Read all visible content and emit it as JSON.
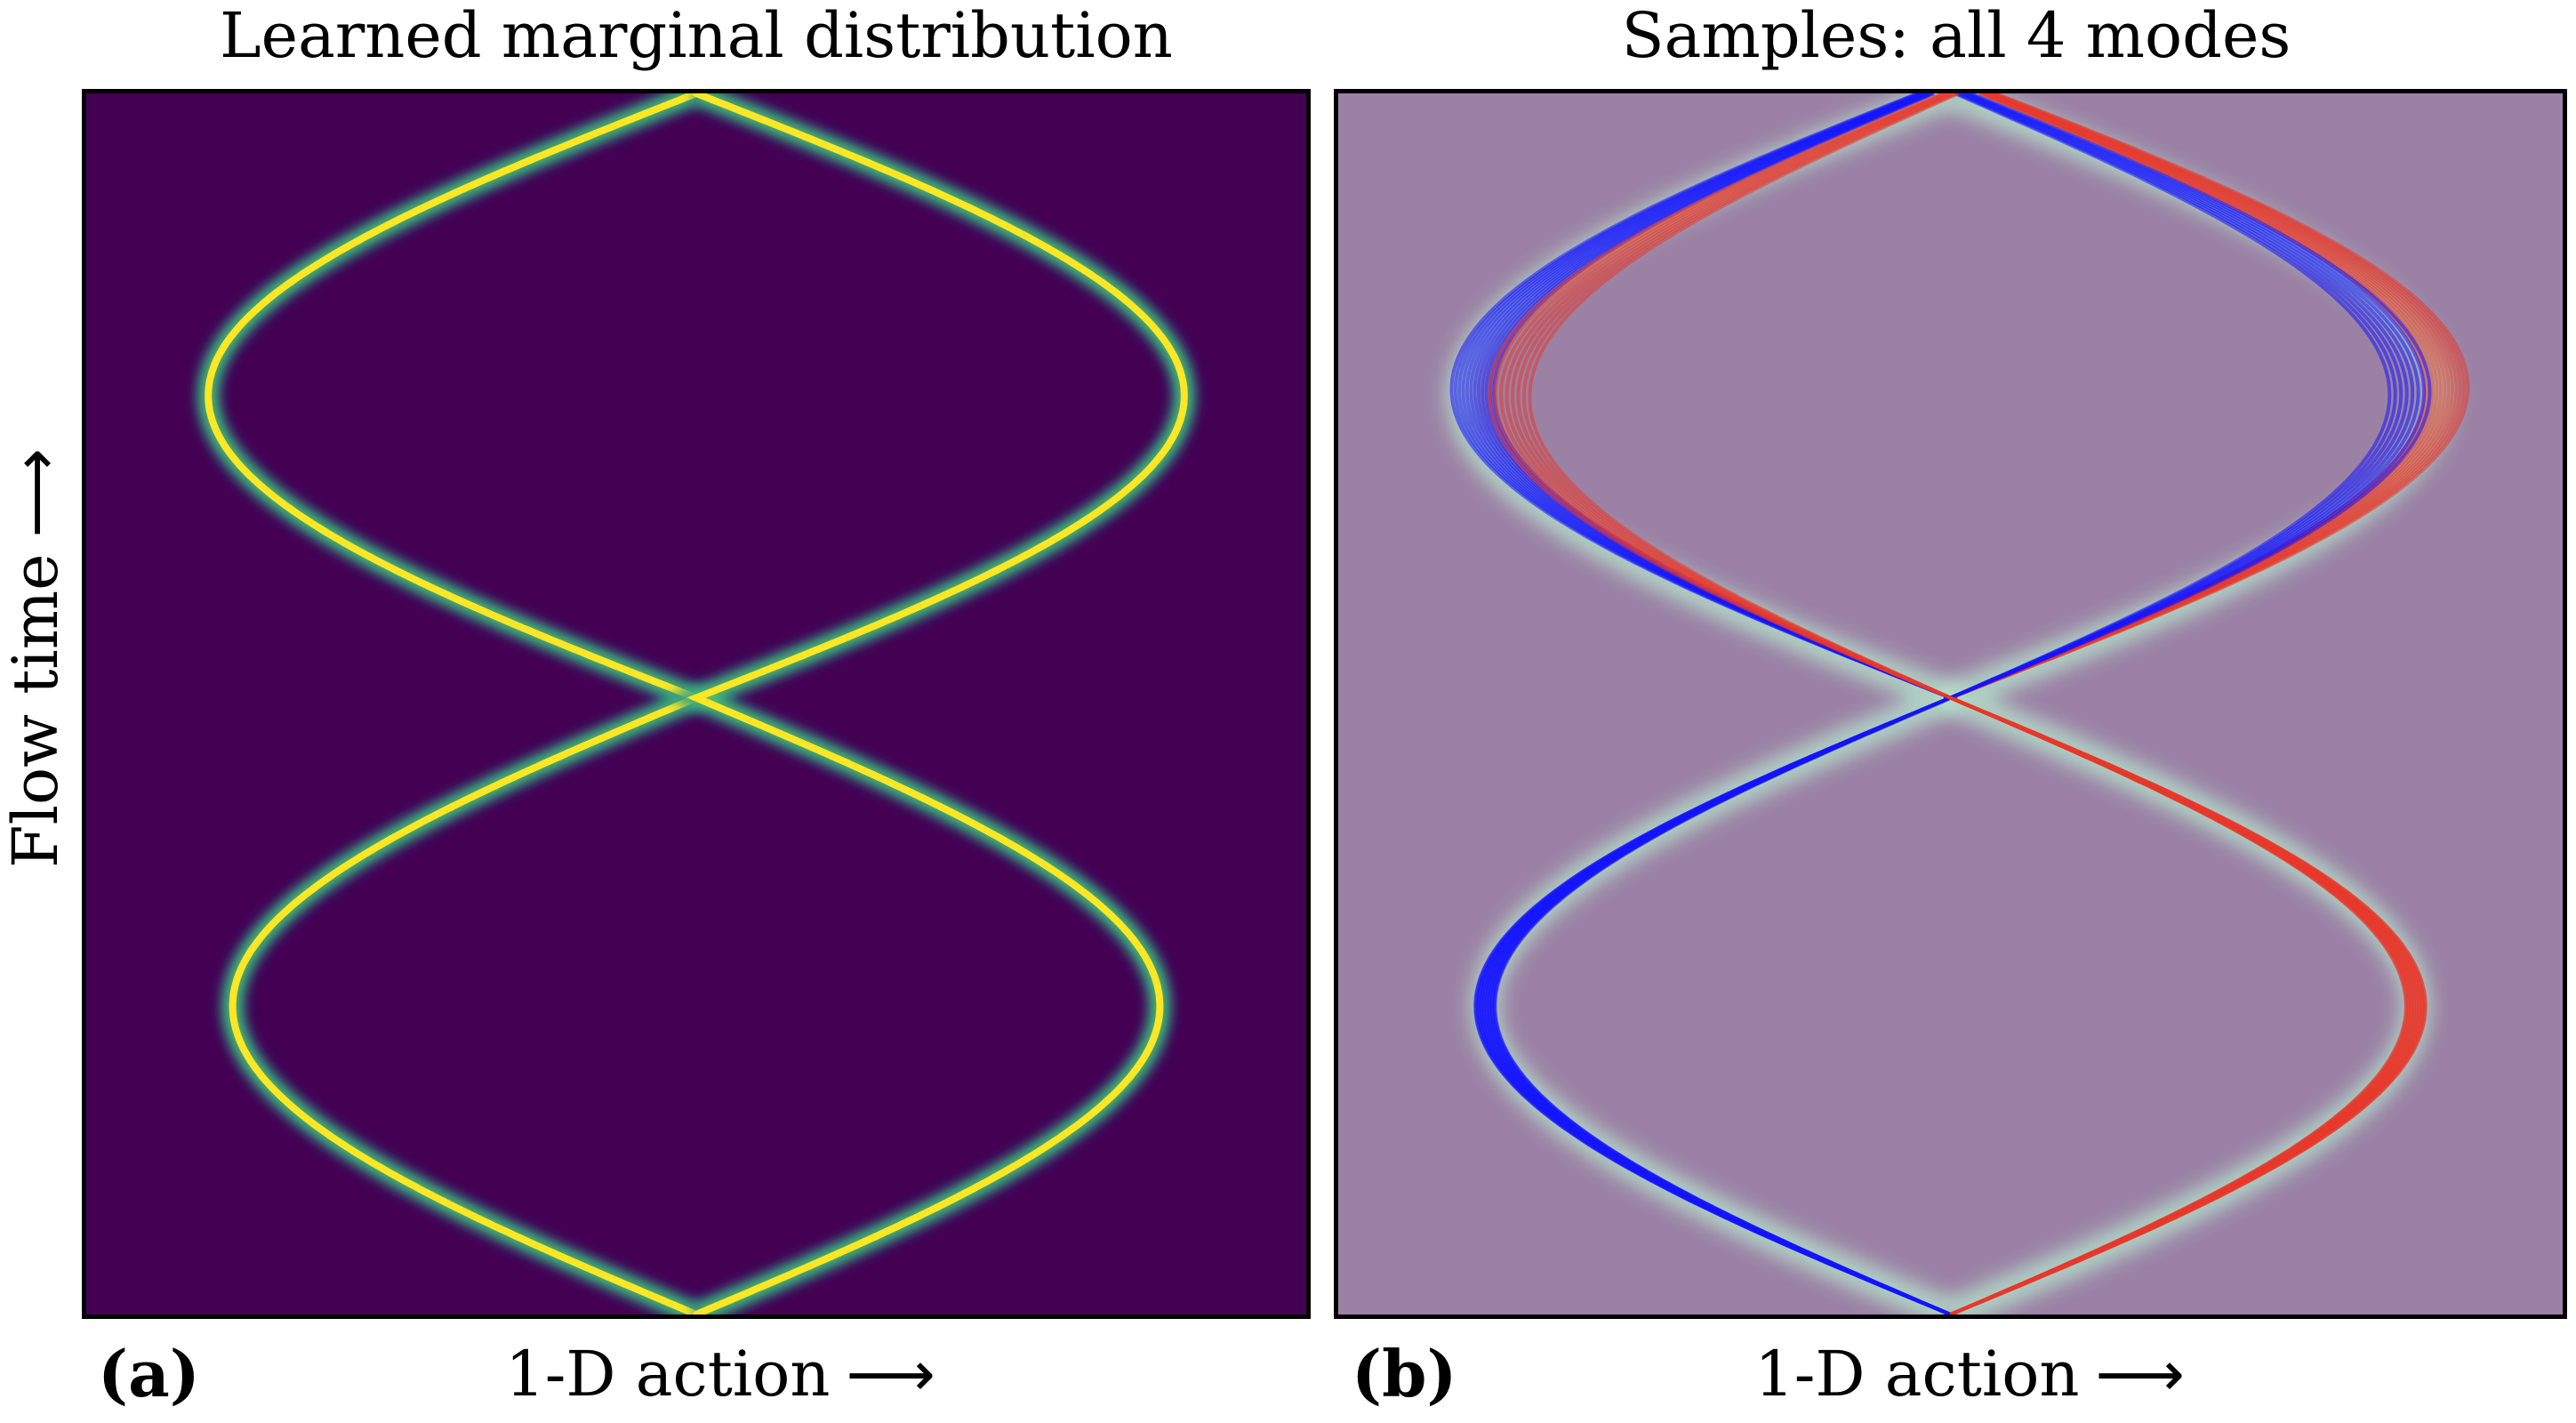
{
  "figure": {
    "y_axis_label": "Flow time",
    "y_axis_arrow": "⟶",
    "x_axis_arrow": "⟶"
  },
  "chart_data": [
    {
      "type": "heatmap",
      "panel_letter": "(a)",
      "title": "Learned marginal distribution",
      "xlabel": "1-D action",
      "ylabel": "Flow time",
      "colormap": "viridis",
      "background_color": "#440154",
      "ridge_color": "#fde725",
      "xlim": [
        -1,
        1
      ],
      "ylim": [
        0,
        1
      ],
      "description_values": {
        "start": {
          "t": 0.0,
          "x": 0.0
        },
        "lower_lobe_max_abs_x": 0.76,
        "lower_lobe_peak_t": 0.265,
        "crossing": {
          "t": 0.505,
          "x": 0.0
        },
        "upper_lobe_max_abs_x": 0.8,
        "upper_lobe_peak_t": 0.75,
        "end": {
          "t": 1.0,
          "x": 0.0
        }
      },
      "grid": false,
      "ticks": false
    },
    {
      "type": "line",
      "panel_letter": "(b)",
      "title": "Samples: all 4 modes",
      "xlabel": "1-D action",
      "ylabel": "Flow time",
      "background_color": "#9b82a5",
      "xlim": [
        -1,
        1
      ],
      "ylim": [
        0,
        1
      ],
      "grid": false,
      "ticks": false,
      "series": [
        {
          "color": "#1414ff",
          "start_x": 0.0,
          "lower_extreme_x": -0.76,
          "crossing": {
            "t": 0.505,
            "x": 0.0
          },
          "upper_extreme_x": -0.76,
          "end_x": -0.04,
          "count": 12
        },
        {
          "color": "#e8382c",
          "start_x": 0.0,
          "lower_extreme_x": 0.76,
          "crossing": {
            "t": 0.505,
            "x": 0.0
          },
          "upper_extreme_x": 0.78,
          "end_x": 0.06,
          "count": 12
        },
        {
          "color": "#1414ff",
          "start_x": 0.0,
          "lower_extreme_x": -0.76,
          "crossing": {
            "t": 0.505,
            "x": 0.0
          },
          "upper_extreme_x": 0.74,
          "end_x": 0.02,
          "count": 8
        },
        {
          "color": "#e8382c",
          "start_x": 0.0,
          "lower_extreme_x": 0.76,
          "crossing": {
            "t": 0.505,
            "x": 0.0
          },
          "upper_extreme_x": -0.72,
          "end_x": 0.0,
          "count": 8
        }
      ]
    }
  ]
}
